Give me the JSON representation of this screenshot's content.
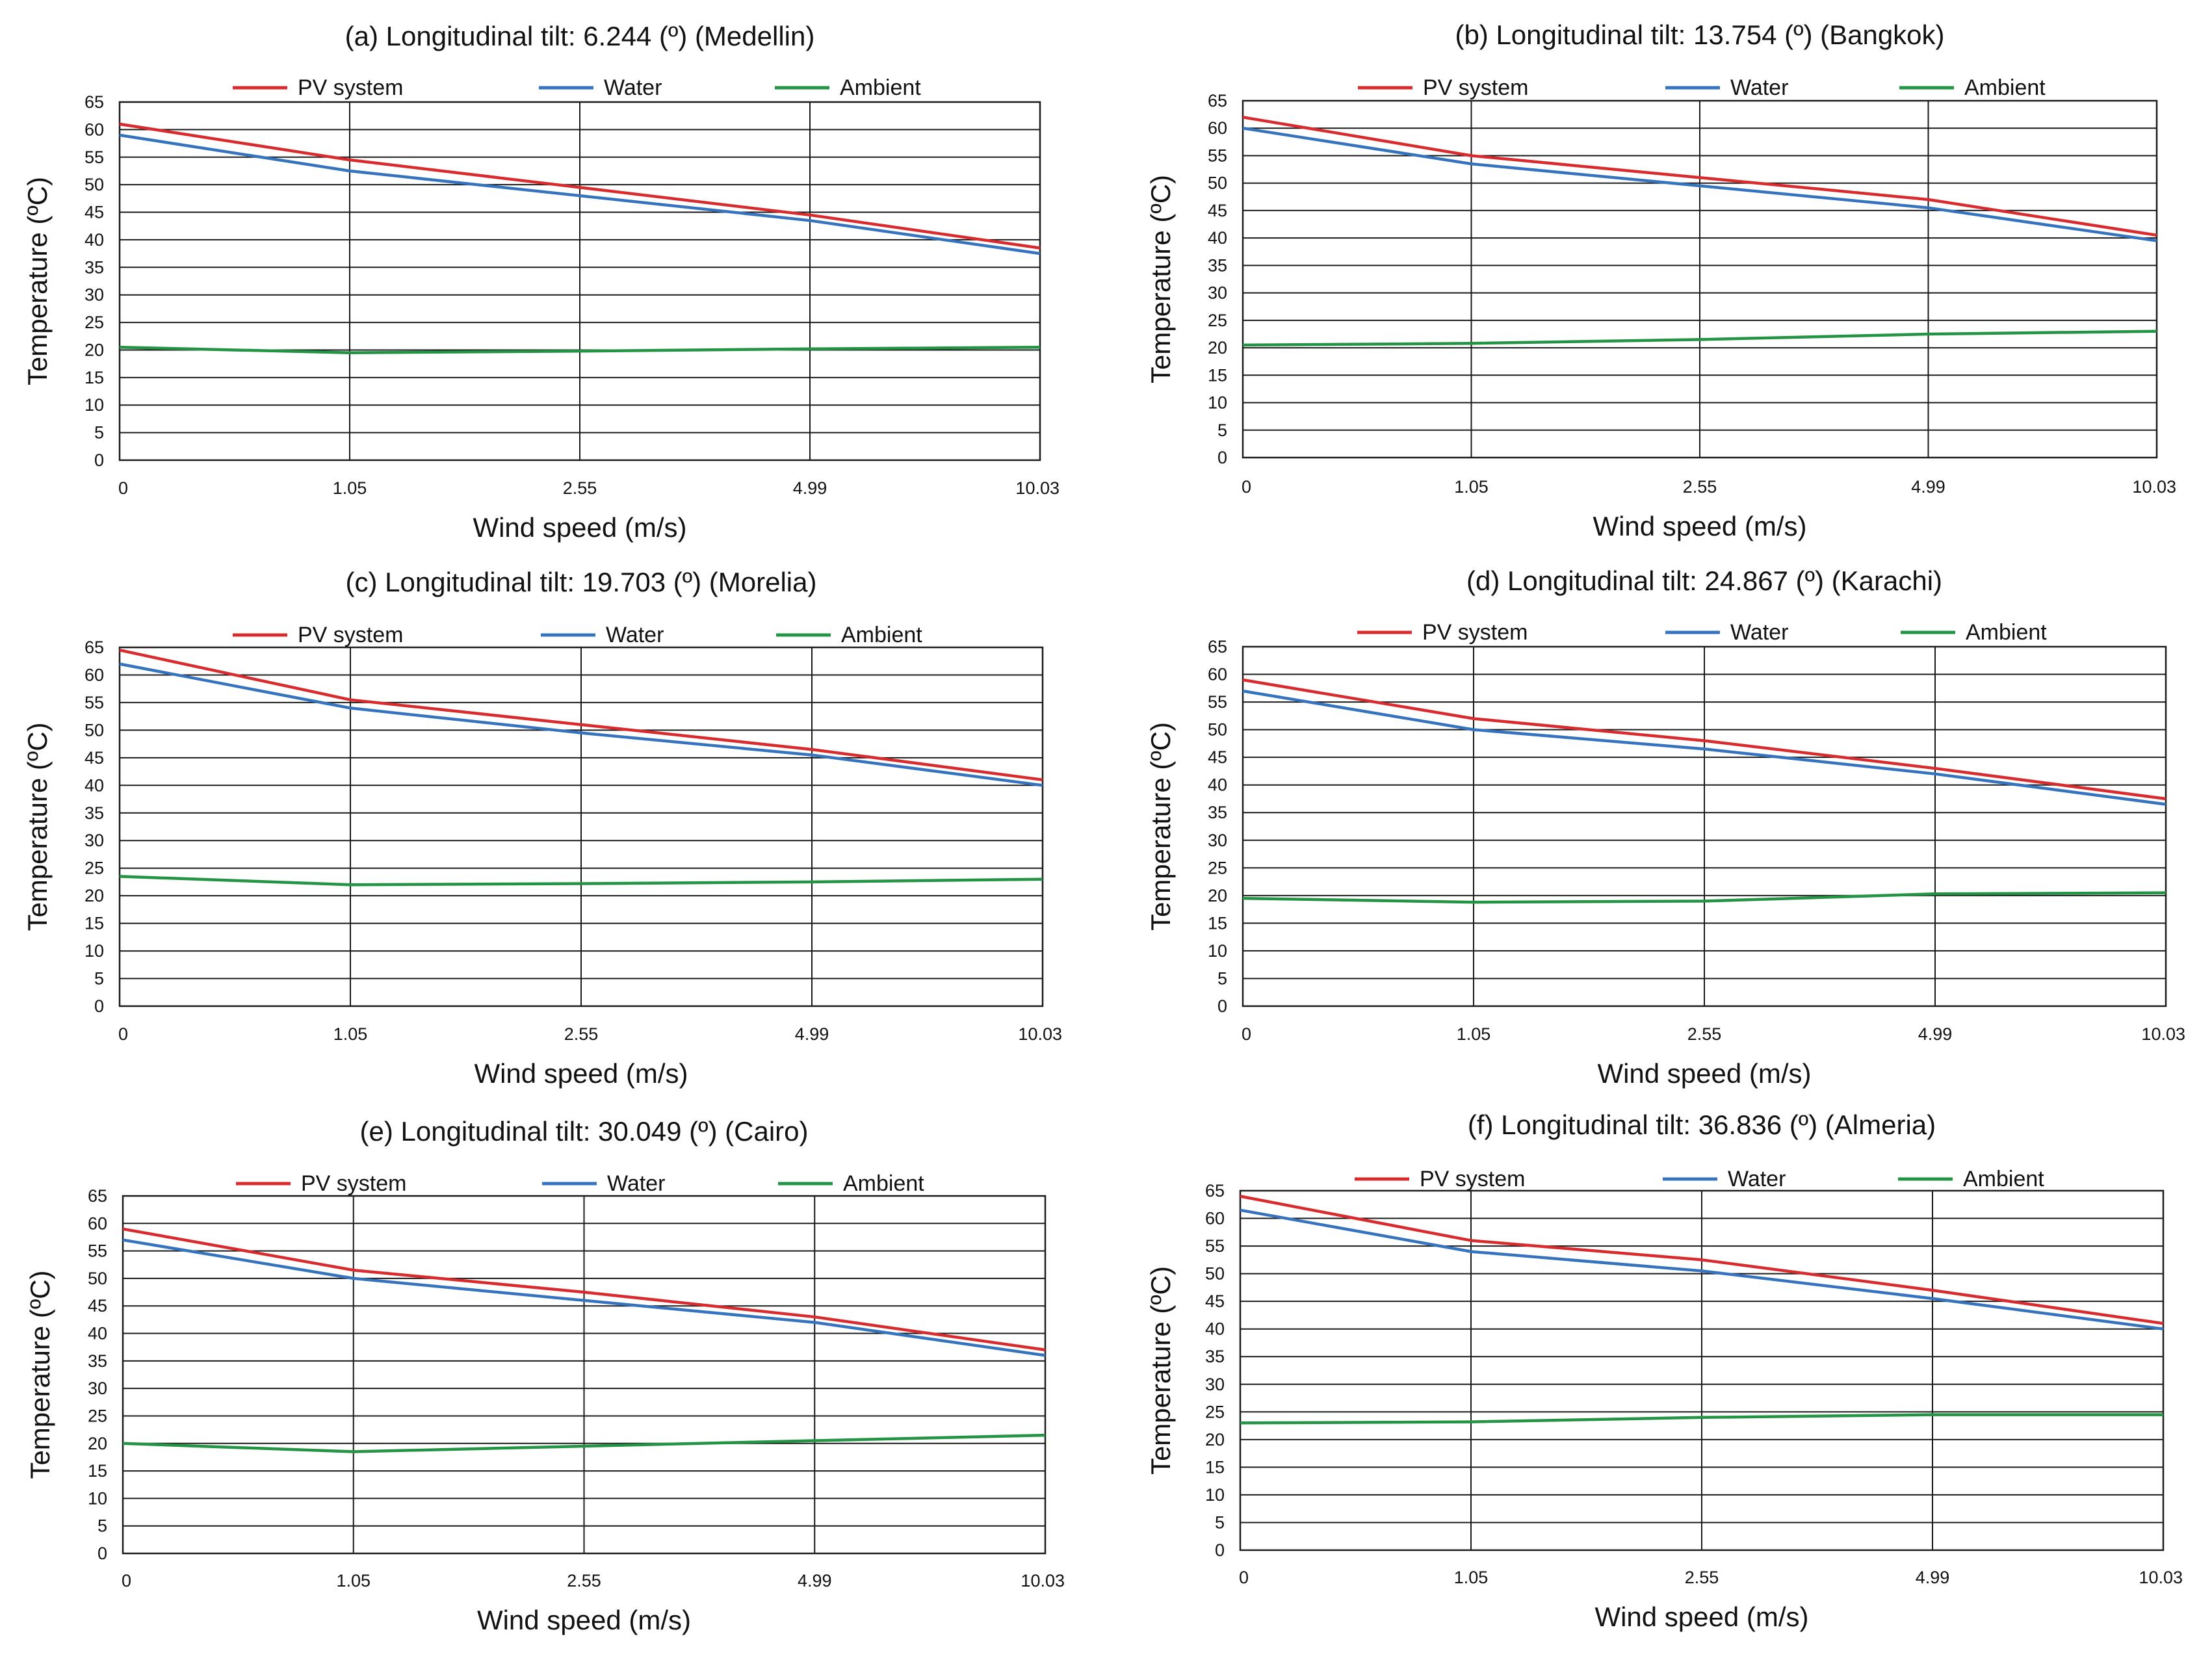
{
  "colors": {
    "pv": "#d92b2e",
    "water": "#3573be",
    "ambient": "#239443",
    "grid": "#1a1a1a"
  },
  "chart_data": [
    {
      "type": "line",
      "title": "(a) Longitudinal tilt: 6.244 (º) (Medellin)",
      "xlabel": "Wind speed (m/s)",
      "ylabel": "Temperature (ºC)",
      "categories": [
        "0",
        "1.05",
        "2.55",
        "4.99",
        "10.03"
      ],
      "yticks": [
        "0",
        "5",
        "10",
        "15",
        "20",
        "25",
        "30",
        "35",
        "40",
        "45",
        "50",
        "55",
        "60",
        "65"
      ],
      "ylim": [
        0,
        65
      ],
      "series": [
        {
          "name": "PV system",
          "values": [
            61,
            54.5,
            49.5,
            44.5,
            38.5
          ]
        },
        {
          "name": "Water",
          "values": [
            59,
            52.5,
            48,
            43.5,
            37.5
          ]
        },
        {
          "name": "Ambient",
          "values": [
            20.5,
            19.5,
            19.8,
            20.2,
            20.5
          ]
        }
      ]
    },
    {
      "type": "line",
      "title": "(b) Longitudinal tilt: 13.754 (º) (Bangkok)",
      "xlabel": "Wind speed (m/s)",
      "ylabel": "Temperature (ºC)",
      "categories": [
        "0",
        "1.05",
        "2.55",
        "4.99",
        "10.03"
      ],
      "yticks": [
        "0",
        "5",
        "10",
        "15",
        "20",
        "25",
        "30",
        "35",
        "40",
        "45",
        "50",
        "55",
        "60",
        "65"
      ],
      "ylim": [
        0,
        65
      ],
      "series": [
        {
          "name": "PV system",
          "values": [
            62,
            55,
            51,
            47,
            40.5
          ]
        },
        {
          "name": "Water",
          "values": [
            60,
            53.5,
            49.5,
            45.5,
            39.5
          ]
        },
        {
          "name": "Ambient",
          "values": [
            20.5,
            20.8,
            21.5,
            22.5,
            23
          ]
        }
      ]
    },
    {
      "type": "line",
      "title": "(c) Longitudinal tilt: 19.703 (º) (Morelia)",
      "xlabel": "Wind speed (m/s)",
      "ylabel": "Temperature (ºC)",
      "categories": [
        "0",
        "1.05",
        "2.55",
        "4.99",
        "10.03"
      ],
      "yticks": [
        "0",
        "5",
        "10",
        "15",
        "20",
        "25",
        "30",
        "35",
        "40",
        "45",
        "50",
        "55",
        "60",
        "65"
      ],
      "ylim": [
        0,
        65
      ],
      "series": [
        {
          "name": "PV system",
          "values": [
            64.5,
            55.5,
            51,
            46.5,
            41
          ]
        },
        {
          "name": "Water",
          "values": [
            62,
            54,
            49.5,
            45.5,
            40
          ]
        },
        {
          "name": "Ambient",
          "values": [
            23.5,
            22,
            22.2,
            22.5,
            23
          ]
        }
      ]
    },
    {
      "type": "line",
      "title": "(d) Longitudinal tilt: 24.867 (º) (Karachi)",
      "xlabel": "Wind speed (m/s)",
      "ylabel": "Temperature (ºC)",
      "categories": [
        "0",
        "1.05",
        "2.55",
        "4.99",
        "10.03"
      ],
      "yticks": [
        "0",
        "5",
        "10",
        "15",
        "20",
        "25",
        "30",
        "35",
        "40",
        "45",
        "50",
        "55",
        "60",
        "65"
      ],
      "ylim": [
        0,
        65
      ],
      "series": [
        {
          "name": "PV system",
          "values": [
            59,
            52,
            48,
            43,
            37.5
          ]
        },
        {
          "name": "Water",
          "values": [
            57,
            50,
            46.5,
            42,
            36.5
          ]
        },
        {
          "name": "Ambient",
          "values": [
            19.5,
            18.8,
            19,
            20.3,
            20.5
          ]
        }
      ]
    },
    {
      "type": "line",
      "title": "(e) Longitudinal tilt: 30.049 (º) (Cairo)",
      "xlabel": "Wind speed (m/s)",
      "ylabel": "Temperature (ºC)",
      "categories": [
        "0",
        "1.05",
        "2.55",
        "4.99",
        "10.03"
      ],
      "yticks": [
        "0",
        "5",
        "10",
        "15",
        "20",
        "25",
        "30",
        "35",
        "40",
        "45",
        "50",
        "55",
        "60",
        "65"
      ],
      "ylim": [
        0,
        65
      ],
      "series": [
        {
          "name": "PV system",
          "values": [
            59,
            51.5,
            47.5,
            43,
            37
          ]
        },
        {
          "name": "Water",
          "values": [
            57,
            50,
            46,
            42,
            36
          ]
        },
        {
          "name": "Ambient",
          "values": [
            20,
            18.5,
            19.5,
            20.5,
            21.5
          ]
        }
      ]
    },
    {
      "type": "line",
      "title": "(f) Longitudinal tilt: 36.836 (º) (Almeria)",
      "xlabel": "Wind speed (m/s)",
      "ylabel": "Temperature (ºC)",
      "categories": [
        "0",
        "1.05",
        "2.55",
        "4.99",
        "10.03"
      ],
      "yticks": [
        "0",
        "5",
        "10",
        "15",
        "20",
        "25",
        "30",
        "35",
        "40",
        "45",
        "50",
        "55",
        "60",
        "65"
      ],
      "ylim": [
        0,
        65
      ],
      "series": [
        {
          "name": "PV system",
          "values": [
            64,
            56,
            52.5,
            47,
            41
          ]
        },
        {
          "name": "Water",
          "values": [
            61.5,
            54,
            50.5,
            45.5,
            40
          ]
        },
        {
          "name": "Ambient",
          "values": [
            23,
            23.2,
            24,
            24.5,
            24.5
          ]
        }
      ]
    }
  ]
}
